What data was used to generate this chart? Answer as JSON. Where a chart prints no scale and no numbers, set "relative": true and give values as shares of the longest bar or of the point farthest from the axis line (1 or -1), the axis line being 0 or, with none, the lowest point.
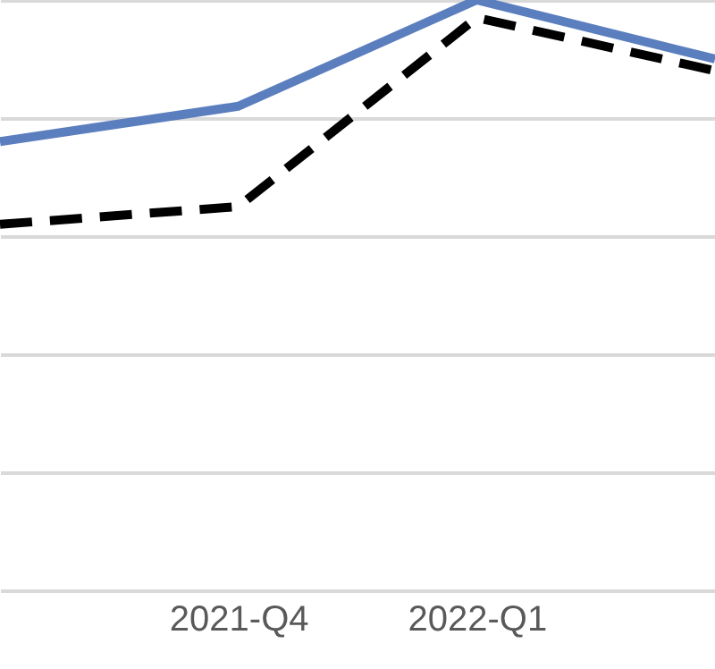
{
  "chart_data": {
    "type": "line",
    "relative": true,
    "categories": [
      null,
      "2021-Q4",
      "2022-Q1",
      null
    ],
    "series": [
      {
        "color": "#5b7fbe",
        "values": [
          0.76,
          0.82,
          1.0,
          0.9
        ],
        "line_style": "solid"
      },
      {
        "color": "#000000",
        "values": [
          0.62,
          0.65,
          0.97,
          0.88
        ],
        "line_style": "dashed"
      }
    ],
    "grid": "y",
    "marker": "none"
  }
}
